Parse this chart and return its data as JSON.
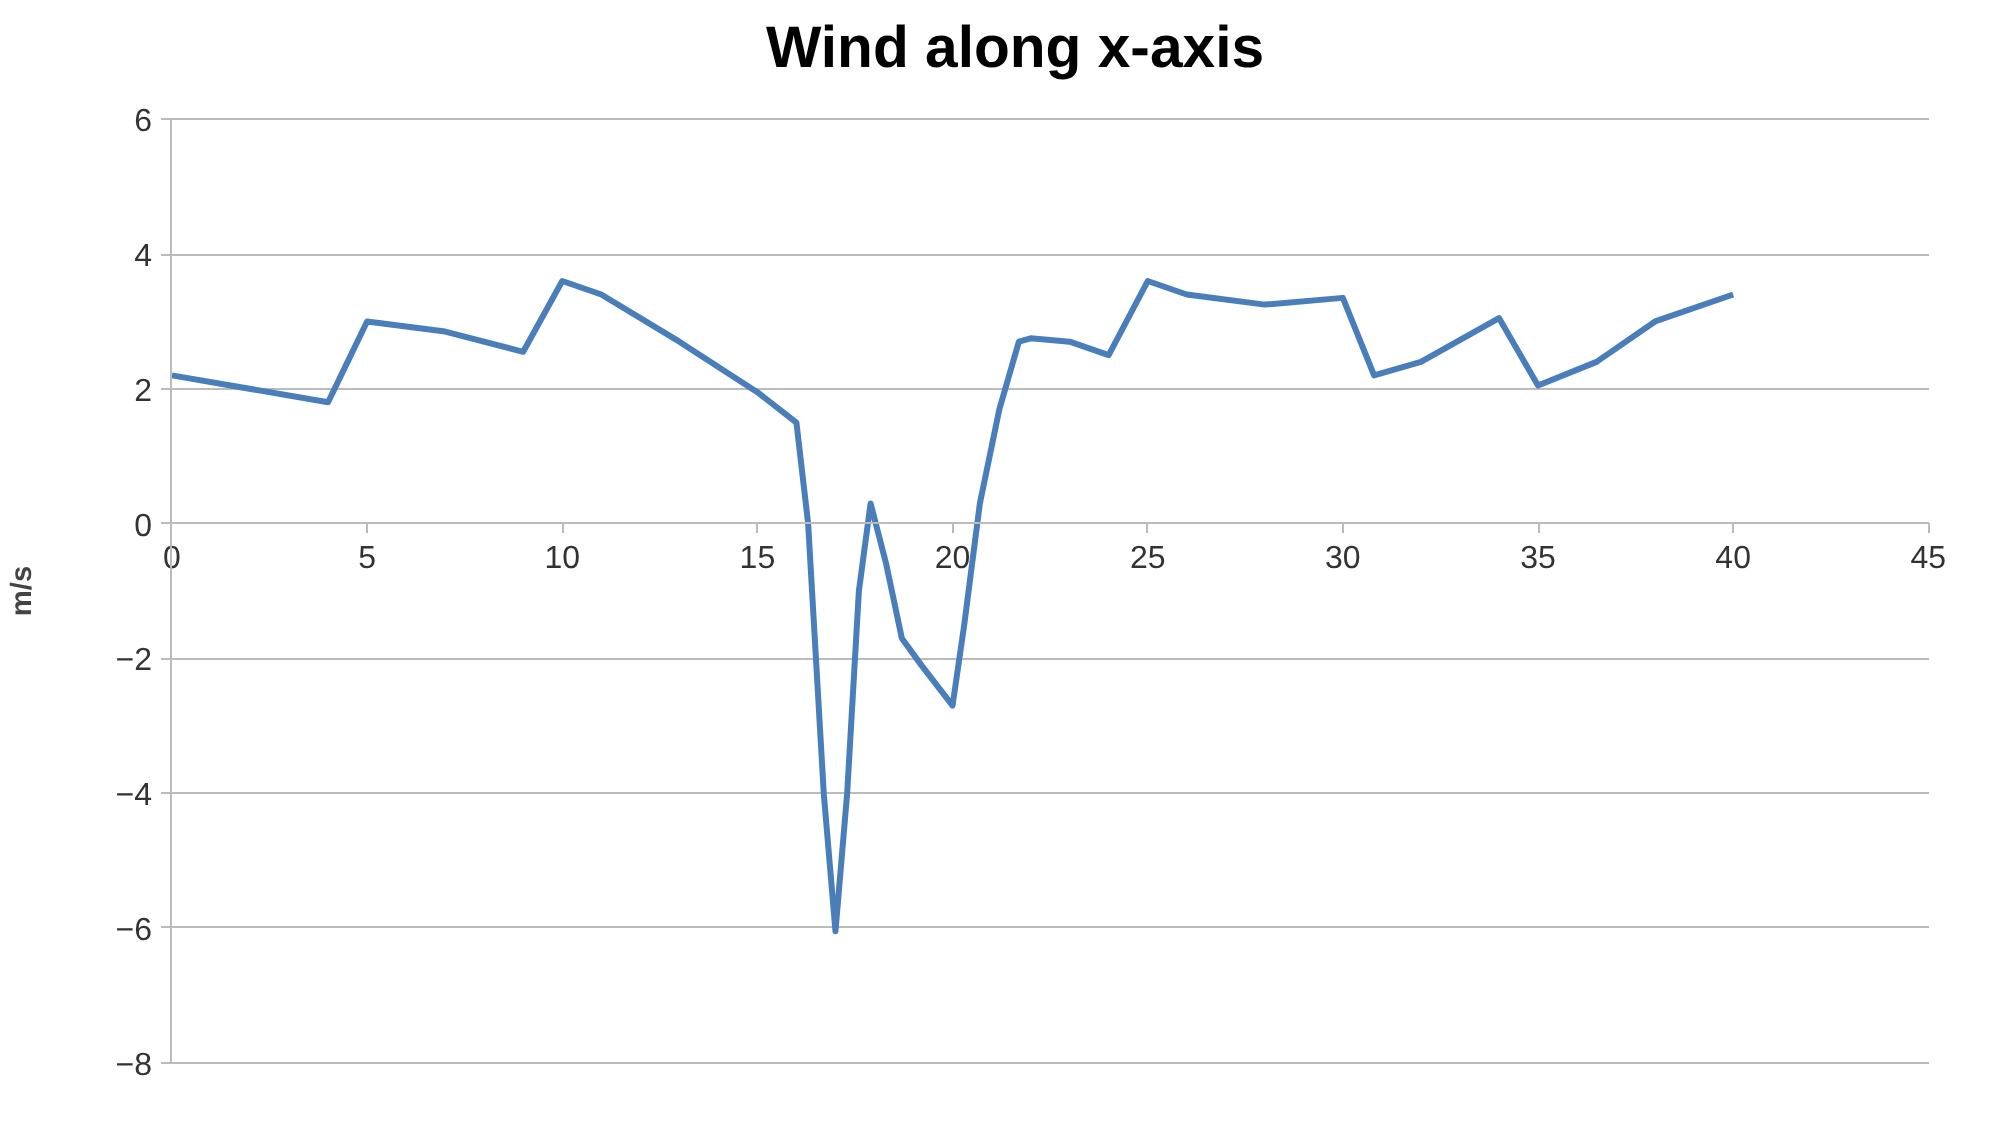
{
  "chart_data": {
    "type": "line",
    "title": "Wind along x-axis",
    "ylabel": "m/s",
    "x": [
      0,
      4,
      4.5,
      5,
      7,
      9,
      10,
      11,
      13,
      15,
      16,
      16.3,
      16.7,
      17,
      17.3,
      17.6,
      17.9,
      18.3,
      18.7,
      19.2,
      19.6,
      20,
      20.3,
      20.7,
      21.2,
      21.7,
      22,
      23,
      24,
      25,
      26,
      28,
      30,
      30.8,
      32,
      34,
      35,
      36.5,
      38,
      40
    ],
    "series": [
      {
        "color": "#4a7ebb",
        "values": [
          2.2,
          1.8,
          2.4,
          3.0,
          2.85,
          2.55,
          3.6,
          3.4,
          2.7,
          1.95,
          1.5,
          0,
          -4,
          -6.05,
          -4,
          -1,
          0.3,
          -0.6,
          -1.7,
          -2.1,
          -2.4,
          -2.7,
          -1.5,
          0.3,
          1.7,
          2.7,
          2.75,
          2.7,
          2.5,
          3.6,
          3.4,
          3.25,
          3.35,
          2.2,
          2.4,
          3.05,
          2.05,
          2.4,
          3.0,
          3.4
        ]
      }
    ],
    "xlim": [
      0,
      45
    ],
    "xticks": [
      0,
      5,
      10,
      15,
      20,
      25,
      30,
      35,
      40,
      45
    ],
    "ylim": [
      -8,
      6
    ],
    "yticks": [
      -8,
      -6,
      -4,
      -2,
      0,
      2,
      4,
      6
    ],
    "grid": "y"
  }
}
